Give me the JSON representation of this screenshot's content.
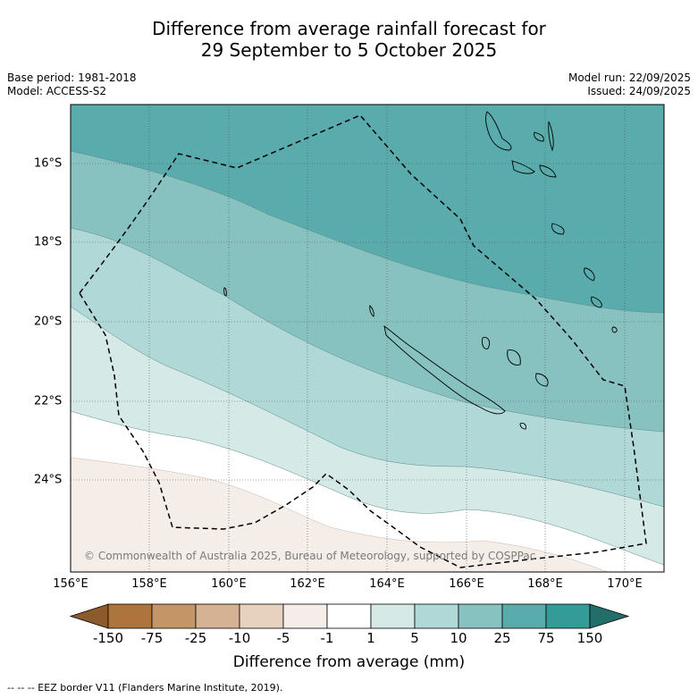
{
  "title": {
    "line1": "Difference from average rainfall forecast for",
    "line2": "29 September to 5 October 2025"
  },
  "meta": {
    "base_period": "Base period: 1981-2018",
    "model": "Model: ACCESS-S2",
    "model_run": "Model run: 22/09/2025",
    "issued": "Issued: 24/09/2025"
  },
  "axes": {
    "x_ticks": [
      "156°E",
      "158°E",
      "160°E",
      "162°E",
      "164°E",
      "166°E",
      "168°E",
      "170°E"
    ],
    "y_ticks": [
      "16°S",
      "18°S",
      "20°S",
      "22°S",
      "24°S"
    ]
  },
  "copyright": "© Commonwealth of Australia 2025, Bureau of Meteorology, supported by COSPPac",
  "colorbar": {
    "labels": [
      "-150",
      "-75",
      "-25",
      "-10",
      "-5",
      "-1",
      "1",
      "5",
      "10",
      "25",
      "75",
      "150"
    ],
    "colors": [
      "#8c5a2b",
      "#ae743e",
      "#c49566",
      "#d5b294",
      "#e7d1bf",
      "#f5ede8",
      "#ffffff",
      "#d5e9e6",
      "#b0d8d6",
      "#87c2c1",
      "#5aabab",
      "#349c98",
      "#236e6b"
    ],
    "title": "Difference from average (mm)"
  },
  "legend_note": "--  --  -- EEZ border V11 (Flanders Marine Institute, 2019).",
  "colors": {
    "band_75": "#5aabab",
    "band_25": "#87c2c1",
    "band_10": "#b0d8d6",
    "band_5": "#d5e9e6",
    "band_1": "#ffffff",
    "band_m1": "#f5ede8"
  }
}
